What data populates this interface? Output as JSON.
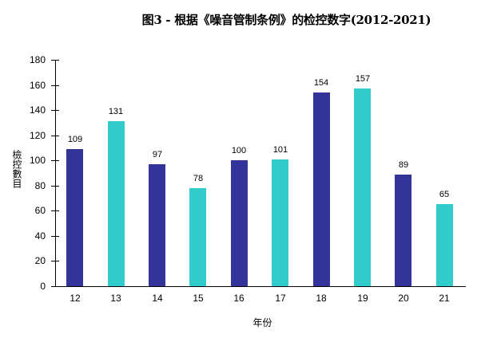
{
  "title": "图3 - 根据《噪音管制条例》的检控数字(2012-2021)",
  "colors": {
    "dark": "#333399",
    "light": "#33CCCC",
    "axis": "#000000",
    "background": "#FFFFFF"
  },
  "chart_data": {
    "type": "bar",
    "title": "图3 - 根据《噪音管制条例》的检控数字(2012-2021)",
    "xlabel": "年份",
    "ylabel": "檢控數目",
    "categories": [
      "12",
      "13",
      "14",
      "15",
      "16",
      "17",
      "18",
      "19",
      "20",
      "21"
    ],
    "values": [
      109,
      131,
      97,
      78,
      100,
      101,
      154,
      157,
      89,
      65
    ],
    "bar_colors": [
      "#333399",
      "#33CCCC",
      "#333399",
      "#33CCCC",
      "#333399",
      "#33CCCC",
      "#333399",
      "#33CCCC",
      "#333399",
      "#33CCCC"
    ],
    "ylim": [
      0,
      180
    ],
    "yticks": [
      0,
      20,
      40,
      60,
      80,
      100,
      120,
      140,
      160,
      180
    ],
    "grid": false,
    "legend": null,
    "data_labels": true
  }
}
